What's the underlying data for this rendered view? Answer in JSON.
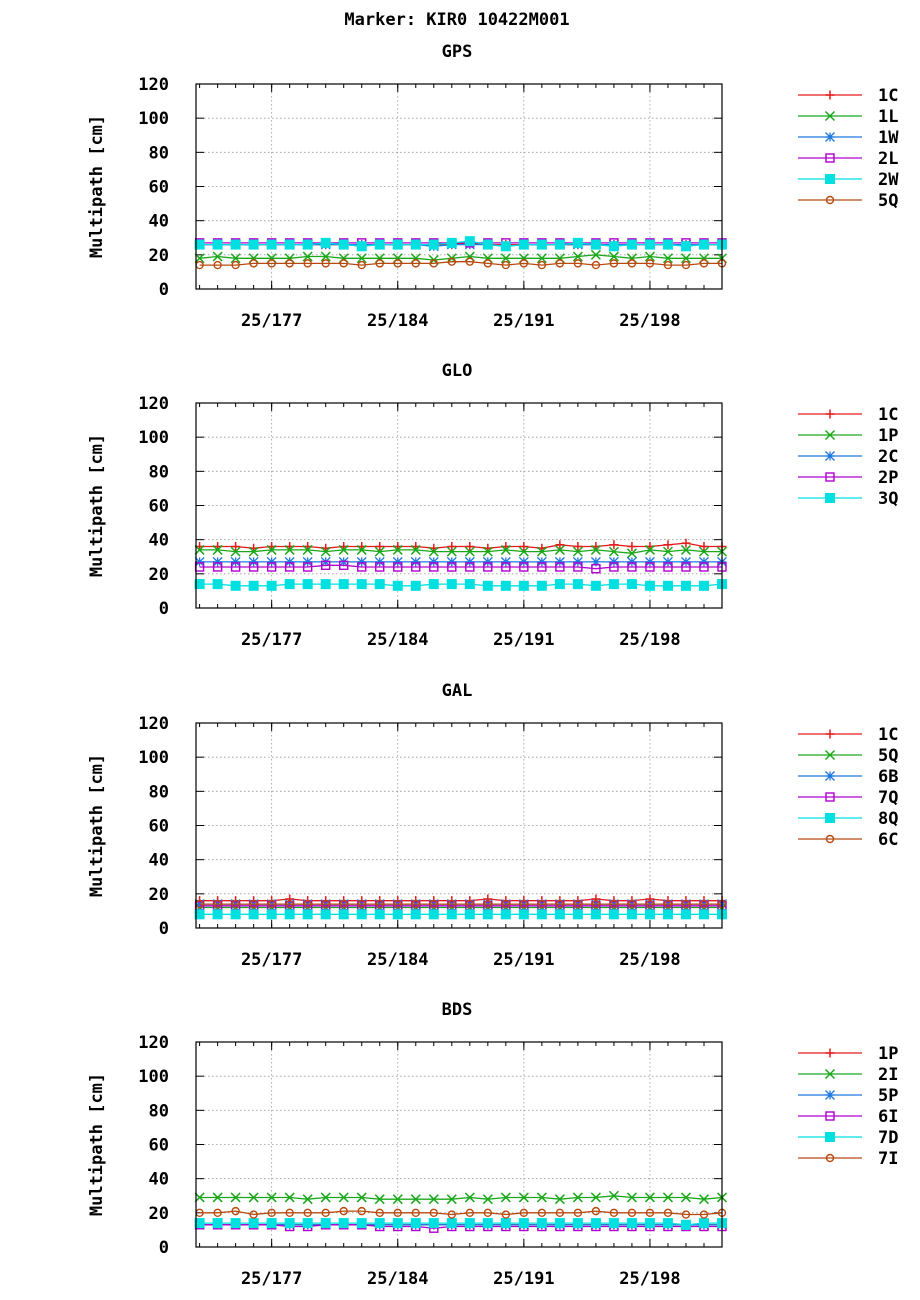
{
  "page_title": "Marker: KIR0 10422M001",
  "chart_data": [
    {
      "type": "line",
      "title": "GPS",
      "ylabel": "Multipath [cm]",
      "ylim": [
        0,
        120
      ],
      "yticks": [
        0,
        20,
        40,
        60,
        80,
        100,
        120
      ],
      "xlim": [
        172.8,
        202.0
      ],
      "xticks": [
        {
          "x": 177,
          "label": "25/177"
        },
        {
          "x": 184,
          "label": "25/184"
        },
        {
          "x": 191,
          "label": "25/191"
        },
        {
          "x": 198,
          "label": "25/198"
        }
      ],
      "grid": true,
      "legend": "right",
      "x": [
        173,
        174,
        175,
        176,
        177,
        178,
        179,
        180,
        181,
        182,
        183,
        184,
        185,
        186,
        187,
        188,
        189,
        190,
        191,
        192,
        193,
        194,
        195,
        196,
        197,
        198,
        199,
        200,
        201,
        202
      ],
      "series": [
        {
          "name": "1C",
          "color": "#e41a1c",
          "marker": "plus",
          "values": [
            26,
            26,
            26,
            26,
            26,
            26,
            26,
            26,
            26,
            26,
            26,
            26,
            26,
            26,
            26,
            27,
            26,
            26,
            26,
            26,
            26,
            26,
            26,
            26,
            26,
            26,
            26,
            26,
            26,
            26
          ]
        },
        {
          "name": "1L",
          "color": "#1aa81a",
          "marker": "x",
          "values": [
            18,
            19,
            18,
            18,
            18,
            18,
            19,
            19,
            18,
            18,
            18,
            18,
            18,
            17,
            18,
            19,
            18,
            18,
            18,
            18,
            18,
            19,
            20,
            19,
            18,
            19,
            18,
            18,
            18,
            18
          ]
        },
        {
          "name": "1W",
          "color": "#1f78e0",
          "marker": "star",
          "values": [
            26,
            26,
            26,
            26,
            26,
            26,
            26,
            26,
            26,
            26,
            26,
            26,
            26,
            25,
            26,
            26,
            26,
            25,
            26,
            26,
            26,
            26,
            26,
            26,
            26,
            26,
            26,
            26,
            26,
            26
          ]
        },
        {
          "name": "2L",
          "color": "#b000d0",
          "marker": "square",
          "values": [
            27,
            27,
            27,
            27,
            27,
            27,
            27,
            27,
            27,
            27,
            27,
            27,
            27,
            27,
            27,
            27,
            27,
            27,
            27,
            27,
            27,
            27,
            27,
            27,
            27,
            27,
            27,
            27,
            27,
            27
          ]
        },
        {
          "name": "2W",
          "color": "#00e0e0",
          "marker": "filled-square",
          "values": [
            26,
            26,
            26,
            26,
            26,
            26,
            26,
            27,
            26,
            25,
            26,
            26,
            26,
            26,
            27,
            28,
            26,
            25,
            26,
            26,
            26,
            27,
            26,
            25,
            26,
            26,
            26,
            25,
            26,
            26
          ]
        },
        {
          "name": "5Q",
          "color": "#b84a10",
          "marker": "circle",
          "values": [
            14,
            14,
            14,
            15,
            15,
            15,
            15,
            15,
            15,
            14,
            15,
            15,
            15,
            15,
            16,
            16,
            15,
            14,
            15,
            14,
            15,
            15,
            14,
            15,
            15,
            15,
            14,
            14,
            15,
            15
          ]
        }
      ]
    },
    {
      "type": "line",
      "title": "GLO",
      "ylabel": "Multipath [cm]",
      "ylim": [
        0,
        120
      ],
      "yticks": [
        0,
        20,
        40,
        60,
        80,
        100,
        120
      ],
      "xlim": [
        172.8,
        202.0
      ],
      "xticks": [
        {
          "x": 177,
          "label": "25/177"
        },
        {
          "x": 184,
          "label": "25/184"
        },
        {
          "x": 191,
          "label": "25/191"
        },
        {
          "x": 198,
          "label": "25/198"
        }
      ],
      "grid": true,
      "legend": "right",
      "x": [
        173,
        174,
        175,
        176,
        177,
        178,
        179,
        180,
        181,
        182,
        183,
        184,
        185,
        186,
        187,
        188,
        189,
        190,
        191,
        192,
        193,
        194,
        195,
        196,
        197,
        198,
        199,
        200,
        201,
        202
      ],
      "series": [
        {
          "name": "1C",
          "color": "#e41a1c",
          "marker": "plus",
          "values": [
            36,
            36,
            36,
            35,
            36,
            36,
            36,
            35,
            36,
            36,
            36,
            36,
            36,
            35,
            36,
            36,
            35,
            36,
            36,
            35,
            37,
            36,
            36,
            37,
            36,
            36,
            37,
            38,
            36,
            36
          ]
        },
        {
          "name": "1P",
          "color": "#1aa81a",
          "marker": "x",
          "values": [
            34,
            34,
            33,
            33,
            34,
            34,
            34,
            33,
            34,
            34,
            33,
            34,
            34,
            33,
            33,
            33,
            33,
            34,
            33,
            33,
            34,
            33,
            34,
            33,
            32,
            34,
            33,
            34,
            33,
            33
          ]
        },
        {
          "name": "2C",
          "color": "#1f78e0",
          "marker": "star",
          "values": [
            27,
            27,
            27,
            27,
            27,
            27,
            27,
            27,
            27,
            27,
            27,
            27,
            27,
            27,
            27,
            27,
            27,
            27,
            27,
            27,
            27,
            27,
            27,
            27,
            27,
            27,
            27,
            27,
            27,
            27
          ]
        },
        {
          "name": "2P",
          "color": "#b000d0",
          "marker": "square",
          "values": [
            24,
            24,
            24,
            24,
            24,
            24,
            24,
            25,
            25,
            24,
            24,
            24,
            24,
            24,
            24,
            24,
            24,
            24,
            24,
            24,
            24,
            24,
            23,
            24,
            24,
            24,
            24,
            24,
            24,
            24
          ]
        },
        {
          "name": "3Q",
          "color": "#00e0e0",
          "marker": "filled-square",
          "values": [
            14,
            14,
            13,
            13,
            13,
            14,
            14,
            14,
            14,
            14,
            14,
            13,
            13,
            14,
            14,
            14,
            13,
            13,
            13,
            13,
            14,
            14,
            13,
            14,
            14,
            13,
            13,
            13,
            13,
            14
          ]
        }
      ]
    },
    {
      "type": "line",
      "title": "GAL",
      "ylabel": "Multipath [cm]",
      "ylim": [
        0,
        120
      ],
      "yticks": [
        0,
        20,
        40,
        60,
        80,
        100,
        120
      ],
      "xlim": [
        172.8,
        202.0
      ],
      "xticks": [
        {
          "x": 177,
          "label": "25/177"
        },
        {
          "x": 184,
          "label": "25/184"
        },
        {
          "x": 191,
          "label": "25/191"
        },
        {
          "x": 198,
          "label": "25/198"
        }
      ],
      "grid": true,
      "legend": "right",
      "x": [
        173,
        174,
        175,
        176,
        177,
        178,
        179,
        180,
        181,
        182,
        183,
        184,
        185,
        186,
        187,
        188,
        189,
        190,
        191,
        192,
        193,
        194,
        195,
        196,
        197,
        198,
        199,
        200,
        201,
        202
      ],
      "series": [
        {
          "name": "1C",
          "color": "#e41a1c",
          "marker": "plus",
          "values": [
            16,
            16,
            16,
            16,
            16,
            17,
            16,
            16,
            16,
            16,
            16,
            16,
            16,
            16,
            16,
            16,
            17,
            16,
            16,
            16,
            16,
            16,
            17,
            16,
            16,
            17,
            16,
            16,
            16,
            16
          ]
        },
        {
          "name": "5Q",
          "color": "#1aa81a",
          "marker": "x",
          "values": [
            12,
            12,
            12,
            12,
            12,
            12,
            12,
            12,
            12,
            12,
            12,
            12,
            12,
            12,
            12,
            12,
            12,
            12,
            12,
            12,
            12,
            12,
            12,
            12,
            12,
            12,
            12,
            12,
            12,
            12
          ]
        },
        {
          "name": "6B",
          "color": "#1f78e0",
          "marker": "star",
          "values": [
            14,
            14,
            14,
            14,
            14,
            14,
            14,
            14,
            14,
            14,
            14,
            14,
            14,
            14,
            14,
            14,
            14,
            14,
            14,
            14,
            14,
            14,
            14,
            14,
            14,
            14,
            14,
            14,
            14,
            14
          ]
        },
        {
          "name": "7Q",
          "color": "#b000d0",
          "marker": "square",
          "values": [
            13,
            13,
            13,
            13,
            13,
            13,
            13,
            13,
            13,
            13,
            13,
            13,
            13,
            13,
            13,
            13,
            13,
            13,
            13,
            13,
            13,
            13,
            13,
            13,
            13,
            13,
            13,
            13,
            13,
            13
          ]
        },
        {
          "name": "8Q",
          "color": "#00e0e0",
          "marker": "filled-square",
          "values": [
            8,
            8,
            8,
            8,
            8,
            8,
            8,
            8,
            8,
            8,
            8,
            8,
            8,
            8,
            8,
            8,
            8,
            8,
            8,
            8,
            8,
            8,
            8,
            8,
            8,
            8,
            8,
            8,
            8,
            8
          ]
        },
        {
          "name": "6C",
          "color": "#b84a10",
          "marker": "circle",
          "values": [
            14,
            14,
            14,
            14,
            14,
            14,
            14,
            14,
            14,
            14,
            14,
            14,
            14,
            14,
            14,
            14,
            14,
            14,
            14,
            14,
            14,
            14,
            14,
            14,
            14,
            14,
            14,
            14,
            14,
            14
          ]
        }
      ]
    },
    {
      "type": "line",
      "title": "BDS",
      "ylabel": "Multipath [cm]",
      "ylim": [
        0,
        120
      ],
      "yticks": [
        0,
        20,
        40,
        60,
        80,
        100,
        120
      ],
      "xlim": [
        172.8,
        202.0
      ],
      "xticks": [
        {
          "x": 177,
          "label": "25/177"
        },
        {
          "x": 184,
          "label": "25/184"
        },
        {
          "x": 191,
          "label": "25/191"
        },
        {
          "x": 198,
          "label": "25/198"
        }
      ],
      "grid": true,
      "legend": "right",
      "x": [
        173,
        174,
        175,
        176,
        177,
        178,
        179,
        180,
        181,
        182,
        183,
        184,
        185,
        186,
        187,
        188,
        189,
        190,
        191,
        192,
        193,
        194,
        195,
        196,
        197,
        198,
        199,
        200,
        201,
        202
      ],
      "series": [
        {
          "name": "1P",
          "color": "#e41a1c",
          "marker": "plus",
          "values": [
            13,
            13,
            13,
            13,
            13,
            13,
            13,
            13,
            13,
            13,
            13,
            13,
            13,
            13,
            13,
            13,
            13,
            13,
            13,
            13,
            13,
            13,
            13,
            13,
            13,
            13,
            13,
            13,
            13,
            13
          ]
        },
        {
          "name": "2I",
          "color": "#1aa81a",
          "marker": "x",
          "values": [
            29,
            29,
            29,
            29,
            29,
            29,
            28,
            29,
            29,
            29,
            28,
            28,
            28,
            28,
            28,
            29,
            28,
            29,
            29,
            29,
            28,
            29,
            29,
            30,
            29,
            29,
            29,
            29,
            28,
            29
          ]
        },
        {
          "name": "5P",
          "color": "#1f78e0",
          "marker": "star",
          "values": [
            13,
            13,
            13,
            13,
            13,
            13,
            13,
            13,
            13,
            13,
            13,
            13,
            13,
            13,
            13,
            13,
            13,
            13,
            13,
            13,
            13,
            13,
            13,
            13,
            13,
            13,
            13,
            13,
            13,
            13
          ]
        },
        {
          "name": "6I",
          "color": "#b000d0",
          "marker": "square",
          "values": [
            13,
            13,
            13,
            13,
            13,
            12,
            12,
            13,
            13,
            13,
            12,
            12,
            12,
            11,
            12,
            12,
            12,
            12,
            12,
            12,
            12,
            12,
            12,
            12,
            12,
            12,
            12,
            12,
            12,
            12
          ]
        },
        {
          "name": "7D",
          "color": "#00e0e0",
          "marker": "filled-square",
          "values": [
            14,
            14,
            14,
            14,
            14,
            14,
            14,
            14,
            14,
            14,
            14,
            14,
            14,
            14,
            14,
            14,
            14,
            14,
            14,
            14,
            14,
            14,
            14,
            14,
            14,
            14,
            14,
            13,
            14,
            14
          ]
        },
        {
          "name": "7I",
          "color": "#b84a10",
          "marker": "circle",
          "values": [
            20,
            20,
            21,
            19,
            20,
            20,
            20,
            20,
            21,
            21,
            20,
            20,
            20,
            20,
            19,
            20,
            20,
            19,
            20,
            20,
            20,
            20,
            21,
            20,
            20,
            20,
            20,
            19,
            19,
            20
          ]
        }
      ]
    }
  ]
}
